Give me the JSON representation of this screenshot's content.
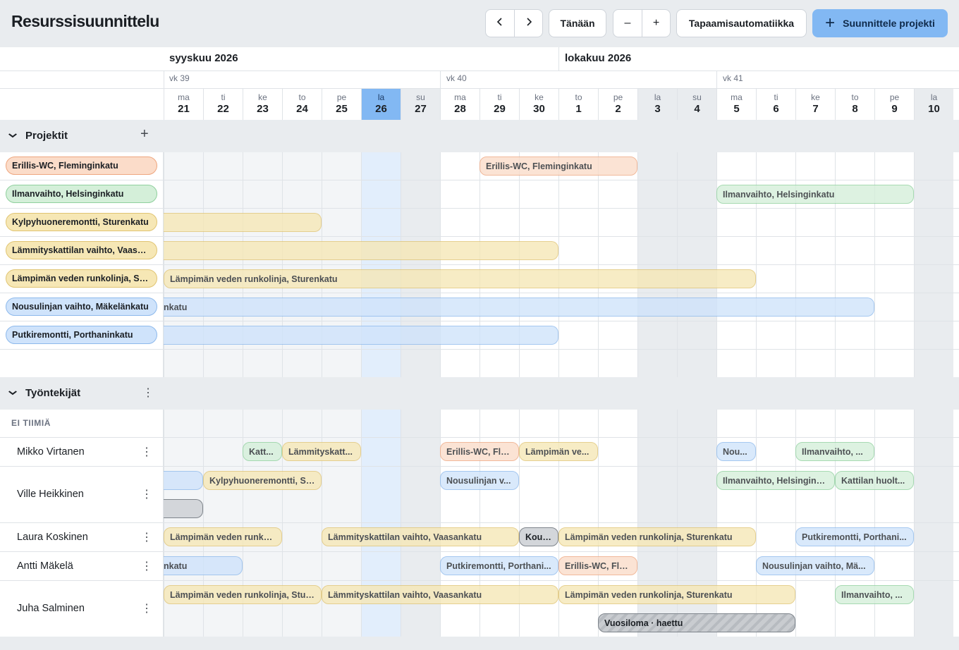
{
  "header": {
    "title": "Resurssisuunnittelu",
    "prev_icon": "chevron-left-icon",
    "next_icon": "chevron-right-icon",
    "today_label": "Tänään",
    "zoom_out_label": "–",
    "zoom_in_label": "+",
    "automation_label": "Tapaamisautomatiikka",
    "plan_project_label": "Suunnittele projekti",
    "plan_project_icon": "+"
  },
  "calendar": {
    "months": [
      {
        "label": "syyskuu 2026"
      },
      {
        "label": "lokakuu 2026"
      }
    ],
    "weeks": [
      {
        "label": "vk 39"
      },
      {
        "label": "vk 40"
      },
      {
        "label": "vk 41"
      }
    ],
    "days": [
      {
        "dow": "ma",
        "num": "21"
      },
      {
        "dow": "ti",
        "num": "22"
      },
      {
        "dow": "ke",
        "num": "23"
      },
      {
        "dow": "to",
        "num": "24"
      },
      {
        "dow": "pe",
        "num": "25"
      },
      {
        "dow": "la",
        "num": "26"
      },
      {
        "dow": "su",
        "num": "27"
      },
      {
        "dow": "ma",
        "num": "28"
      },
      {
        "dow": "ti",
        "num": "29"
      },
      {
        "dow": "ke",
        "num": "30"
      },
      {
        "dow": "to",
        "num": "1"
      },
      {
        "dow": "pe",
        "num": "2"
      },
      {
        "dow": "la",
        "num": "3"
      },
      {
        "dow": "su",
        "num": "4"
      },
      {
        "dow": "ma",
        "num": "5"
      },
      {
        "dow": "ti",
        "num": "6"
      },
      {
        "dow": "ke",
        "num": "7"
      },
      {
        "dow": "to",
        "num": "8"
      },
      {
        "dow": "pe",
        "num": "9"
      },
      {
        "dow": "la",
        "num": "10"
      }
    ]
  },
  "projects_section": {
    "title": "Projektit",
    "add_icon": "+",
    "projects": [
      {
        "label": "Erillis-WC, Fleminginkatu",
        "color": "orange"
      },
      {
        "label": "Ilmanvaihto, Helsinginkatu",
        "color": "green"
      },
      {
        "label": "Kylpyhuoneremontti, Sturenkatu",
        "color": "yellow"
      },
      {
        "label": "Lämmityskattilan vaihto, Vaasankatu",
        "color": "yellow"
      },
      {
        "label": "Lämpimän veden runkolinja, Sturenkatu",
        "color": "yellow"
      },
      {
        "label": "Nousulinjan vaihto, Mäkelänkatu",
        "color": "blue"
      },
      {
        "label": "Putkiremontti, Porthaninkatu",
        "color": "blue"
      }
    ],
    "bars": [
      {
        "text": "Erillis-WC, Fleminginkatu"
      },
      {
        "text": "Ilmanvaihto, Helsinginkatu"
      },
      {
        "text": ""
      },
      {
        "text": ""
      },
      {
        "text": "Lämpimän veden runkolinja, Sturenkatu"
      },
      {
        "text": "nkatu"
      },
      {
        "text": ""
      }
    ]
  },
  "employees_section": {
    "title": "Työntekijät",
    "menu_icon": "⋮",
    "team_label": "EI TIIMIÄ",
    "employees": [
      {
        "name": "Mikko Virtanen"
      },
      {
        "name": "Ville Heikkinen"
      },
      {
        "name": "Laura Koskinen"
      },
      {
        "name": "Antti Mäkelä"
      },
      {
        "name": "Juha Salminen"
      }
    ],
    "assignments": [
      {
        "text": "Katt..."
      },
      {
        "text": "Lämmityskatt..."
      },
      {
        "text": "Erillis-WC, Fle..."
      },
      {
        "text": "Lämpimän ve..."
      },
      {
        "text": "Nou..."
      },
      {
        "text": "Ilmanvaihto, ..."
      },
      {
        "text": ""
      },
      {
        "text": "Kylpyhuoneremontti, St..."
      },
      {
        "text": "Nousulinjan v..."
      },
      {
        "text": "Ilmanvaihto, Helsingink..."
      },
      {
        "text": "Kattilan huolt..."
      },
      {
        "text": ""
      },
      {
        "text": "Lämpimän veden runko..."
      },
      {
        "text": "Lämmityskattilan vaihto, Vaasankatu"
      },
      {
        "text": "Koul..."
      },
      {
        "text": "Lämpimän veden runkolinja, Sturenkatu"
      },
      {
        "text": "Putkiremontti, Porthani..."
      },
      {
        "text": "nkatu"
      },
      {
        "text": "Putkiremontti, Porthani..."
      },
      {
        "text": "Erillis-WC, Fle..."
      },
      {
        "text": "Nousulinjan vaihto, Mä..."
      },
      {
        "text": "Lämpimän veden runkolinja, Stur..."
      },
      {
        "text": "Lämmityskattilan vaihto, Vaasankatu"
      },
      {
        "text": "Lämpimän veden runkolinja, Sturenkatu"
      },
      {
        "text": "Ilmanvaihto, ..."
      },
      {
        "text": "Vuosiloma · haettu"
      }
    ]
  },
  "colors": {
    "accent": "#82b8f3",
    "orange": "#fbdcc9",
    "green": "#d4efd9",
    "yellow": "#f6e7b5",
    "blue": "#cfe3fb",
    "gray": "#d3d6da"
  }
}
